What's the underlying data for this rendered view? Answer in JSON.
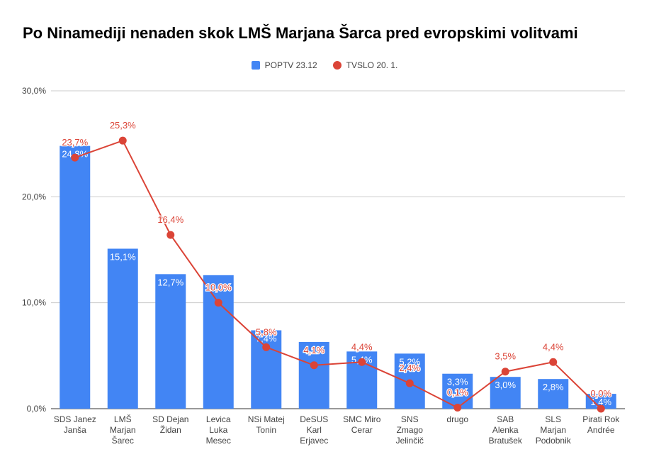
{
  "chart_data": {
    "type": "bar",
    "title": "Po Ninamediji nenaden skok LMŠ Marjana Šarca pred evropskimi volitvami",
    "xlabel": "",
    "ylabel": "",
    "ylim": [
      0,
      30
    ],
    "yticks": [
      "0,0%",
      "10,0%",
      "20,0%",
      "30,0%"
    ],
    "ytick_values": [
      0,
      10,
      20,
      30
    ],
    "grid": true,
    "legend_position": "top-center",
    "categories": [
      [
        "SDS Janez",
        "Janša"
      ],
      [
        "LMŠ",
        "Marjan",
        "Šarec"
      ],
      [
        "SD Dejan",
        "Židan"
      ],
      [
        "Levica",
        "Luka",
        "Mesec"
      ],
      [
        "NSi Matej",
        "Tonin"
      ],
      [
        "DeSUS",
        "Karl",
        "Erjavec"
      ],
      [
        "SMC Miro",
        "Cerar"
      ],
      [
        "SNS",
        "Zmago",
        "Jelinčič"
      ],
      [
        "drugo"
      ],
      [
        "SAB",
        "Alenka",
        "Bratušek"
      ],
      [
        "SLS",
        "Marjan",
        "Podobnik"
      ],
      [
        "Pirati Rok",
        "Andrée"
      ]
    ],
    "series": [
      {
        "name": "POPTV 23.12",
        "kind": "bar",
        "color": "#4285f4",
        "values": [
          24.8,
          15.1,
          12.7,
          12.6,
          7.4,
          6.3,
          5.4,
          5.2,
          3.3,
          3.0,
          2.8,
          1.4
        ],
        "labels": [
          "24,8%",
          "15,1%",
          "12,7%",
          "",
          "7,4%",
          "",
          "5,4%",
          "5,2%",
          "3,3%",
          "3,0%",
          "2,8%",
          "1,4%"
        ]
      },
      {
        "name": "TVSLO 20. 1.",
        "kind": "line",
        "color": "#db4437",
        "values": [
          23.7,
          25.3,
          16.4,
          10.0,
          5.8,
          4.1,
          4.4,
          2.4,
          0.1,
          3.5,
          4.4,
          0.0
        ],
        "labels": [
          "23,7%",
          "25,3%",
          "16,4%",
          "10,0%",
          "5,8%",
          "4,1%",
          "4,4%",
          "2,4%",
          "0,1%",
          "3,5%",
          "4,4%",
          "0,0%"
        ]
      }
    ]
  }
}
